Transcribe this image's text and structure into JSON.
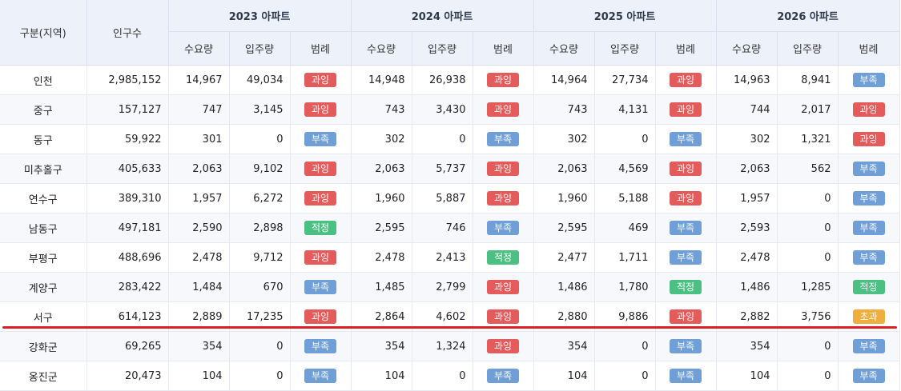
{
  "header": {
    "region_label": "구분(지역)",
    "population_label": "인구수",
    "years": [
      "2023 아파트",
      "2024 아파트",
      "2025 아파트",
      "2026 아파트"
    ],
    "sub_labels": {
      "demand": "수요량",
      "supply": "입주량",
      "legend": "범례"
    }
  },
  "legend_colors": {
    "과잉": "#e35b5b",
    "부족": "#6f9fd6",
    "적정": "#4cbf83",
    "초과": "#f0ae3c"
  },
  "rows": [
    {
      "region": "인천",
      "population": "2,985,152",
      "years": [
        {
          "demand": "14,967",
          "supply": "49,034",
          "status": "과잉"
        },
        {
          "demand": "14,948",
          "supply": "26,938",
          "status": "과잉"
        },
        {
          "demand": "14,964",
          "supply": "27,734",
          "status": "과잉"
        },
        {
          "demand": "14,963",
          "supply": "8,941",
          "status": "부족"
        }
      ]
    },
    {
      "region": "중구",
      "population": "157,127",
      "years": [
        {
          "demand": "747",
          "supply": "3,145",
          "status": "과잉"
        },
        {
          "demand": "743",
          "supply": "3,430",
          "status": "과잉"
        },
        {
          "demand": "743",
          "supply": "4,131",
          "status": "과잉"
        },
        {
          "demand": "744",
          "supply": "2,017",
          "status": "과잉"
        }
      ]
    },
    {
      "region": "동구",
      "population": "59,922",
      "years": [
        {
          "demand": "301",
          "supply": "0",
          "status": "부족"
        },
        {
          "demand": "302",
          "supply": "0",
          "status": "부족"
        },
        {
          "demand": "302",
          "supply": "0",
          "status": "부족"
        },
        {
          "demand": "302",
          "supply": "1,321",
          "status": "과잉"
        }
      ]
    },
    {
      "region": "미추홀구",
      "population": "405,633",
      "years": [
        {
          "demand": "2,063",
          "supply": "9,102",
          "status": "과잉"
        },
        {
          "demand": "2,063",
          "supply": "5,737",
          "status": "과잉"
        },
        {
          "demand": "2,063",
          "supply": "4,569",
          "status": "과잉"
        },
        {
          "demand": "2,063",
          "supply": "562",
          "status": "부족"
        }
      ]
    },
    {
      "region": "연수구",
      "population": "389,310",
      "years": [
        {
          "demand": "1,957",
          "supply": "6,272",
          "status": "과잉"
        },
        {
          "demand": "1,960",
          "supply": "5,887",
          "status": "과잉"
        },
        {
          "demand": "1,960",
          "supply": "5,188",
          "status": "과잉"
        },
        {
          "demand": "1,957",
          "supply": "0",
          "status": "부족"
        }
      ]
    },
    {
      "region": "남동구",
      "population": "497,181",
      "years": [
        {
          "demand": "2,590",
          "supply": "2,898",
          "status": "적정"
        },
        {
          "demand": "2,595",
          "supply": "746",
          "status": "부족"
        },
        {
          "demand": "2,595",
          "supply": "469",
          "status": "부족"
        },
        {
          "demand": "2,593",
          "supply": "0",
          "status": "부족"
        }
      ]
    },
    {
      "region": "부평구",
      "population": "488,696",
      "years": [
        {
          "demand": "2,478",
          "supply": "9,712",
          "status": "과잉"
        },
        {
          "demand": "2,478",
          "supply": "2,413",
          "status": "적정"
        },
        {
          "demand": "2,477",
          "supply": "1,711",
          "status": "부족"
        },
        {
          "demand": "2,478",
          "supply": "0",
          "status": "부족"
        }
      ]
    },
    {
      "region": "계양구",
      "population": "283,422",
      "years": [
        {
          "demand": "1,484",
          "supply": "670",
          "status": "부족"
        },
        {
          "demand": "1,485",
          "supply": "2,799",
          "status": "과잉"
        },
        {
          "demand": "1,486",
          "supply": "1,780",
          "status": "적정"
        },
        {
          "demand": "1,486",
          "supply": "1,285",
          "status": "적정"
        }
      ]
    },
    {
      "region": "서구",
      "population": "614,123",
      "years": [
        {
          "demand": "2,889",
          "supply": "17,235",
          "status": "과잉"
        },
        {
          "demand": "2,864",
          "supply": "4,602",
          "status": "과잉"
        },
        {
          "demand": "2,880",
          "supply": "9,886",
          "status": "과잉"
        },
        {
          "demand": "2,882",
          "supply": "3,756",
          "status": "초과"
        }
      ]
    },
    {
      "region": "강화군",
      "population": "69,265",
      "years": [
        {
          "demand": "354",
          "supply": "0",
          "status": "부족"
        },
        {
          "demand": "354",
          "supply": "1,324",
          "status": "과잉"
        },
        {
          "demand": "354",
          "supply": "0",
          "status": "부족"
        },
        {
          "demand": "354",
          "supply": "0",
          "status": "부족"
        }
      ]
    },
    {
      "region": "옹진군",
      "population": "20,473",
      "years": [
        {
          "demand": "104",
          "supply": "0",
          "status": "부족"
        },
        {
          "demand": "104",
          "supply": "0",
          "status": "부족"
        },
        {
          "demand": "104",
          "supply": "0",
          "status": "부족"
        },
        {
          "demand": "104",
          "supply": "0",
          "status": "부족"
        }
      ]
    }
  ]
}
